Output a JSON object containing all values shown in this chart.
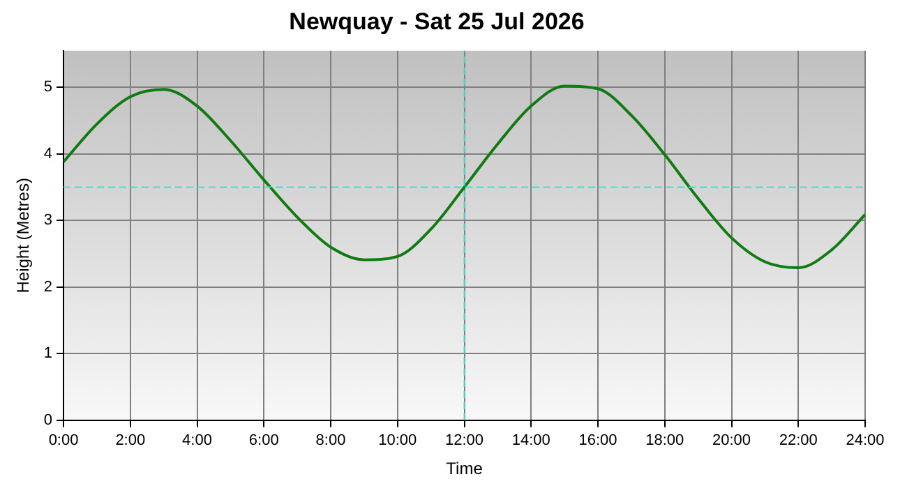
{
  "chart_data": {
    "type": "line",
    "title": "Newquay - Sat 25 Jul 2026",
    "xlabel": "Time",
    "ylabel": "Height (Metres)",
    "x": [
      0,
      1,
      2,
      3,
      4,
      5,
      6,
      7,
      8,
      9,
      10,
      11,
      12,
      13,
      14,
      15,
      16,
      17,
      18,
      19,
      20,
      21,
      22,
      23,
      24
    ],
    "series": [
      {
        "color": "#127a12",
        "values": [
          3.88,
          4.45,
          4.86,
          4.97,
          4.72,
          4.2,
          3.61,
          3.05,
          2.6,
          2.41,
          2.46,
          2.87,
          3.5,
          4.15,
          4.72,
          5.02,
          4.98,
          4.58,
          3.99,
          3.33,
          2.74,
          2.38,
          2.29,
          2.56,
          3.09
        ]
      }
    ],
    "xlim": [
      0,
      24
    ],
    "xticks": [
      {
        "value": 0,
        "label": "0:00"
      },
      {
        "value": 2,
        "label": "2:00"
      },
      {
        "value": 4,
        "label": "4:00"
      },
      {
        "value": 6,
        "label": "6:00"
      },
      {
        "value": 8,
        "label": "8:00"
      },
      {
        "value": 10,
        "label": "10:00"
      },
      {
        "value": 12,
        "label": "12:00"
      },
      {
        "value": 14,
        "label": "14:00"
      },
      {
        "value": 16,
        "label": "16:00"
      },
      {
        "value": 18,
        "label": "18:00"
      },
      {
        "value": 20,
        "label": "20:00"
      },
      {
        "value": 22,
        "label": "22:00"
      },
      {
        "value": 24,
        "label": "24:00"
      }
    ],
    "ylim": [
      0,
      5.55
    ],
    "yticks": [
      0,
      1,
      2,
      3,
      4,
      5
    ],
    "ref_lines": [
      {
        "axis": "x",
        "value": 12,
        "color": "#40e0d0",
        "line_style": "dashed"
      },
      {
        "axis": "y",
        "value": 3.5,
        "color": "#40e0d0",
        "line_style": "dashed"
      }
    ],
    "grid": true,
    "legend": false,
    "marker": "none",
    "line_style": "solid"
  }
}
